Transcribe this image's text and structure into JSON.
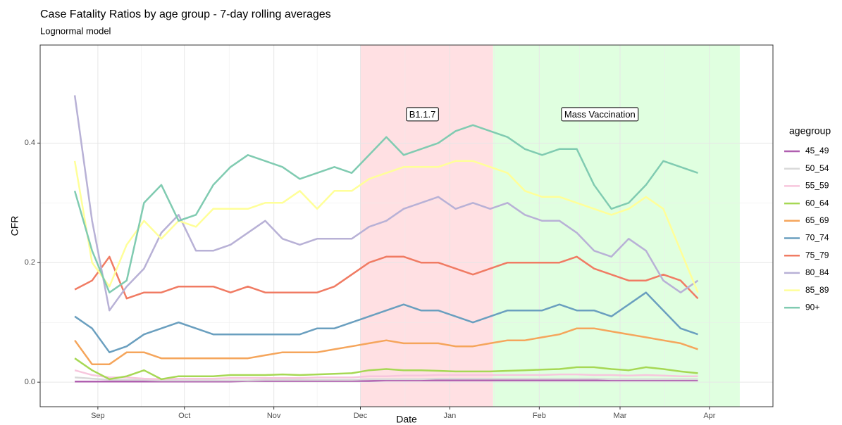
{
  "chart_data": {
    "type": "line",
    "title": "Case Fatality Ratios by age group -  7-day rolling averages",
    "subtitle": "Lognormal model",
    "x_label": "Date",
    "y_label": "CFR",
    "legend_title": "agegroup",
    "legend": "right",
    "grid": true,
    "xlim": [
      11,
      265
    ],
    "ylim": [
      -0.041,
      0.564
    ],
    "xticks": [
      {
        "value": 31,
        "label": "Sep"
      },
      {
        "value": 61,
        "label": "Oct"
      },
      {
        "value": 92,
        "label": "Nov"
      },
      {
        "value": 122,
        "label": "Dec"
      },
      {
        "value": 153,
        "label": "Jan"
      },
      {
        "value": 184,
        "label": "Feb"
      },
      {
        "value": 212,
        "label": "Mar"
      },
      {
        "value": 243,
        "label": "Apr"
      }
    ],
    "yticks": [
      {
        "value": 0,
        "label": "0.0"
      },
      0.2,
      0.4
    ],
    "annotations": [
      {
        "label": "B1.1.7",
        "xmin": 122,
        "xmax": 168,
        "x": 143.5,
        "y": 0.447,
        "color": "#ffe0e3"
      },
      {
        "label": "Mass Vaccination",
        "xmin": 168,
        "xmax": 253.5,
        "x": 205,
        "y": 0.447,
        "color": "#e0ffe0"
      }
    ],
    "x": [
      23,
      29,
      35,
      41,
      47,
      53,
      59,
      65,
      71,
      77,
      83,
      89,
      95,
      101,
      107,
      113,
      119,
      125,
      131,
      137,
      143,
      149,
      155,
      161,
      167,
      173,
      179,
      185,
      191,
      197,
      203,
      209,
      215,
      221,
      227,
      233,
      239
    ],
    "series": [
      {
        "name": "45_49",
        "color": "#b05fb0",
        "values": [
          0.001,
          0.001,
          0.001,
          0.001,
          0.001,
          0.001,
          0.001,
          0.001,
          0.001,
          0.001,
          0.002,
          0.002,
          0.002,
          0.002,
          0.002,
          0.002,
          0.002,
          0.002,
          0.003,
          0.003,
          0.003,
          0.003,
          0.003,
          0.003,
          0.003,
          0.003,
          0.003,
          0.003,
          0.003,
          0.003,
          0.003,
          0.003,
          0.003,
          0.003,
          0.003,
          0.003,
          0.003
        ]
      },
      {
        "name": "50_54",
        "color": "#d9d9d9",
        "values": [
          0.008,
          0.006,
          0.004,
          0.004,
          0.004,
          0.003,
          0.003,
          0.003,
          0.003,
          0.003,
          0.003,
          0.004,
          0.004,
          0.004,
          0.004,
          0.004,
          0.004,
          0.005,
          0.005,
          0.005,
          0.005,
          0.006,
          0.006,
          0.006,
          0.006,
          0.006,
          0.006,
          0.006,
          0.006,
          0.006,
          0.006,
          0.005,
          0.005,
          0.005,
          0.005,
          0.005,
          0.005
        ]
      },
      {
        "name": "55_59",
        "color": "#f7c6dd",
        "values": [
          0.02,
          0.012,
          0.008,
          0.008,
          0.006,
          0.005,
          0.006,
          0.006,
          0.006,
          0.007,
          0.007,
          0.007,
          0.007,
          0.007,
          0.008,
          0.008,
          0.008,
          0.01,
          0.01,
          0.011,
          0.011,
          0.012,
          0.012,
          0.012,
          0.012,
          0.012,
          0.012,
          0.012,
          0.013,
          0.013,
          0.012,
          0.012,
          0.011,
          0.012,
          0.011,
          0.01,
          0.01
        ]
      },
      {
        "name": "60_64",
        "color": "#a6d854",
        "values": [
          0.04,
          0.02,
          0.005,
          0.01,
          0.02,
          0.005,
          0.01,
          0.01,
          0.01,
          0.012,
          0.012,
          0.012,
          0.013,
          0.012,
          0.013,
          0.014,
          0.015,
          0.02,
          0.022,
          0.02,
          0.02,
          0.019,
          0.018,
          0.018,
          0.018,
          0.019,
          0.02,
          0.021,
          0.022,
          0.025,
          0.025,
          0.022,
          0.02,
          0.025,
          0.022,
          0.018,
          0.015
        ]
      },
      {
        "name": "65_69",
        "color": "#f5a55b",
        "values": [
          0.07,
          0.03,
          0.03,
          0.05,
          0.05,
          0.04,
          0.04,
          0.04,
          0.04,
          0.04,
          0.04,
          0.045,
          0.05,
          0.05,
          0.05,
          0.055,
          0.06,
          0.065,
          0.07,
          0.065,
          0.065,
          0.065,
          0.06,
          0.06,
          0.065,
          0.07,
          0.07,
          0.075,
          0.08,
          0.09,
          0.09,
          0.085,
          0.08,
          0.075,
          0.07,
          0.065,
          0.055
        ]
      },
      {
        "name": "70_74",
        "color": "#6a9fbf",
        "values": [
          0.11,
          0.09,
          0.05,
          0.06,
          0.08,
          0.09,
          0.1,
          0.09,
          0.08,
          0.08,
          0.08,
          0.08,
          0.08,
          0.08,
          0.09,
          0.09,
          0.1,
          0.11,
          0.12,
          0.13,
          0.12,
          0.12,
          0.11,
          0.1,
          0.11,
          0.12,
          0.12,
          0.12,
          0.13,
          0.12,
          0.12,
          0.11,
          0.13,
          0.15,
          0.12,
          0.09,
          0.08
        ]
      },
      {
        "name": "75_79",
        "color": "#f07b63",
        "values": [
          0.155,
          0.17,
          0.21,
          0.14,
          0.15,
          0.15,
          0.16,
          0.16,
          0.16,
          0.15,
          0.16,
          0.15,
          0.15,
          0.15,
          0.15,
          0.16,
          0.18,
          0.2,
          0.21,
          0.21,
          0.2,
          0.2,
          0.19,
          0.18,
          0.19,
          0.2,
          0.2,
          0.2,
          0.2,
          0.21,
          0.19,
          0.18,
          0.17,
          0.17,
          0.18,
          0.17,
          0.14
        ]
      },
      {
        "name": "80_84",
        "color": "#b8b1d6",
        "values": [
          0.48,
          0.27,
          0.12,
          0.16,
          0.19,
          0.25,
          0.28,
          0.22,
          0.22,
          0.23,
          0.25,
          0.27,
          0.24,
          0.23,
          0.24,
          0.24,
          0.24,
          0.26,
          0.27,
          0.29,
          0.3,
          0.31,
          0.29,
          0.3,
          0.29,
          0.3,
          0.28,
          0.27,
          0.27,
          0.25,
          0.22,
          0.21,
          0.24,
          0.22,
          0.17,
          0.15,
          0.17
        ]
      },
      {
        "name": "85_89",
        "color": "#ffff99",
        "values": [
          0.37,
          0.2,
          0.16,
          0.23,
          0.27,
          0.24,
          0.27,
          0.26,
          0.29,
          0.29,
          0.29,
          0.3,
          0.3,
          0.32,
          0.29,
          0.32,
          0.32,
          0.34,
          0.35,
          0.36,
          0.36,
          0.36,
          0.37,
          0.37,
          0.36,
          0.35,
          0.32,
          0.31,
          0.31,
          0.3,
          0.29,
          0.28,
          0.29,
          0.31,
          0.29,
          0.22,
          0.15
        ]
      },
      {
        "name": "90+",
        "color": "#80cbb1",
        "values": [
          0.32,
          0.22,
          0.15,
          0.17,
          0.3,
          0.33,
          0.27,
          0.28,
          0.33,
          0.36,
          0.38,
          0.37,
          0.36,
          0.34,
          0.35,
          0.36,
          0.35,
          0.38,
          0.41,
          0.38,
          0.39,
          0.4,
          0.42,
          0.43,
          0.42,
          0.41,
          0.39,
          0.38,
          0.39,
          0.39,
          0.33,
          0.29,
          0.3,
          0.33,
          0.37,
          0.36,
          0.35
        ]
      }
    ]
  }
}
